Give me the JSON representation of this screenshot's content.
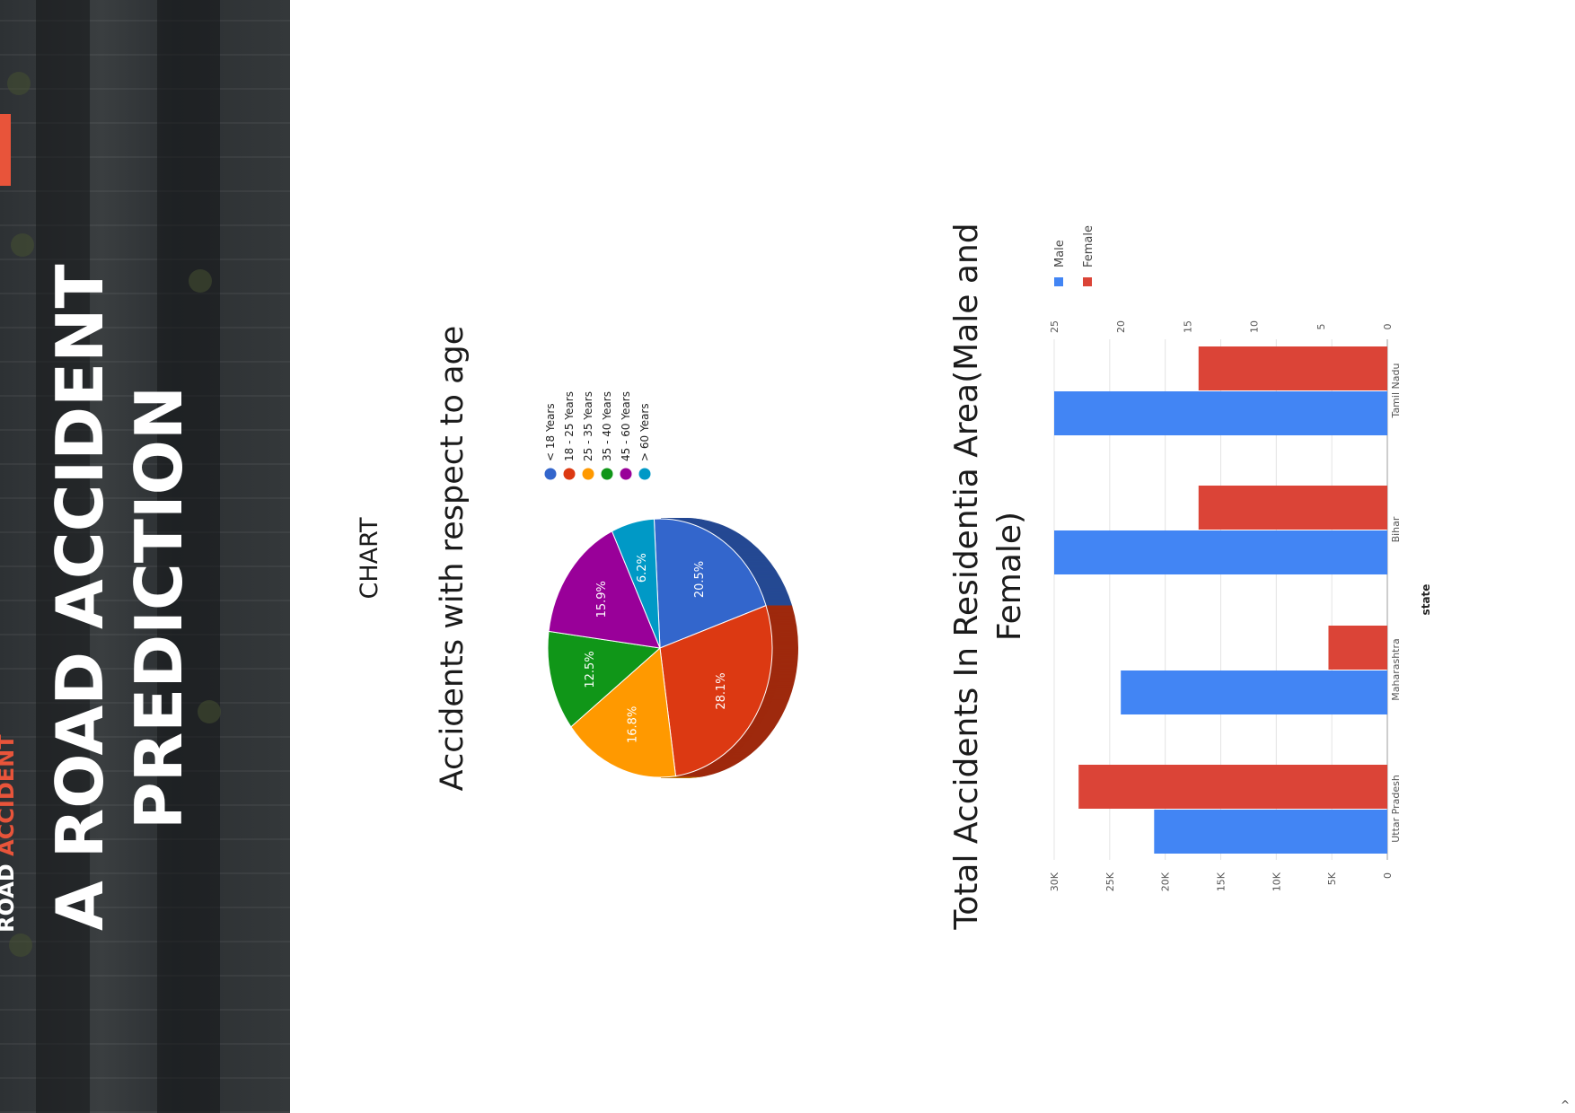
{
  "hero": {
    "title_line1": "A ROAD ACCIDENT",
    "title_line2": "PREDICTION",
    "brand_prefix": "ROAD",
    "brand_highlight": "ACCIDENT",
    "accent_color": "#e8543a"
  },
  "section_label": "CHART",
  "chart_data": [
    {
      "type": "pie",
      "title": "Accidents with respect to age",
      "labels": [
        "< 18 Years",
        "18 - 25 Years",
        "25 - 35 Years",
        "35 - 40 Years",
        "45 - 60 Years",
        "> 60 Years"
      ],
      "values": [
        20.5,
        28.1,
        16.8,
        12.5,
        15.9,
        6.2
      ],
      "value_labels": [
        "20.5%",
        "28.1%",
        "16.8%",
        "12.5%",
        "15.9%",
        "6.2%"
      ],
      "colors": [
        "#3366cc",
        "#dc3912",
        "#ff9900",
        "#109618",
        "#990099",
        "#0099c6"
      ],
      "legend_position": "right"
    },
    {
      "type": "bar",
      "title": "Total Accidents In Residentia Area(Male and Female)",
      "xlabel": "state",
      "categories": [
        "Tamil Nadu",
        "Bihar",
        "Maharashtra",
        "Uttar Pradesh"
      ],
      "series": [
        {
          "name": "Male",
          "axis": "secondary",
          "values": [
            25,
            25,
            20,
            17.5
          ],
          "color": "#4285f4"
        },
        {
          "name": "Female",
          "axis": "primary",
          "values": [
            17000,
            17000,
            5300,
            27800
          ],
          "color": "#db4437"
        }
      ],
      "primary_axis_ticks": [
        "0",
        "5K",
        "10K",
        "15K",
        "20K",
        "25K",
        "30K"
      ],
      "primary_axis_range": [
        0,
        30000
      ],
      "secondary_axis_ticks": [
        "0",
        "5",
        "10",
        "15",
        "20",
        "25"
      ],
      "secondary_axis_range": [
        0,
        25
      ],
      "legend_position": "top",
      "grid": true
    }
  ]
}
